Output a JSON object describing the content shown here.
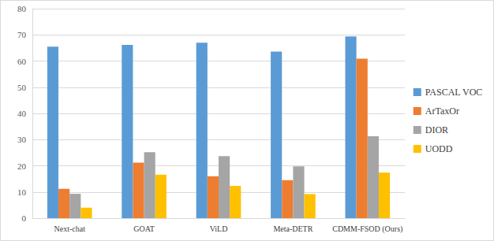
{
  "chart_data": {
    "type": "bar",
    "categories": [
      "Next-chat",
      "GOAT",
      "ViLD",
      "Meta-DETR",
      "CDMM-FSOD (Ours)"
    ],
    "series": [
      {
        "name": "PASCAL VOC",
        "color": "#5b9bd5",
        "values": [
          65.5,
          66.2,
          67.0,
          63.6,
          69.4
        ]
      },
      {
        "name": "ArTaxOr",
        "color": "#ed7d31",
        "values": [
          11.2,
          21.2,
          16.0,
          14.5,
          60.9
        ]
      },
      {
        "name": "DIOR",
        "color": "#a5a5a5",
        "values": [
          9.3,
          25.2,
          23.7,
          19.8,
          31.3
        ]
      },
      {
        "name": "UODD",
        "color": "#ffc000",
        "values": [
          4.0,
          16.6,
          12.3,
          9.2,
          17.4
        ]
      }
    ],
    "ylim": [
      0,
      80
    ],
    "yticks": [
      0,
      10,
      20,
      30,
      40,
      50,
      60,
      70,
      80
    ],
    "grid": true,
    "legend": "right"
  }
}
